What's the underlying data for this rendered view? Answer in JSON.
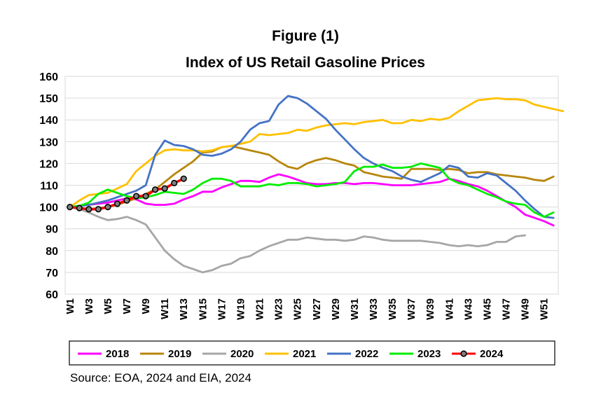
{
  "chart_data": {
    "type": "line",
    "title_line1": "Figure (1)",
    "title_line2": "Index of US Retail Gasoline Prices",
    "source": "Source: EOA, 2024 and EIA, 2024",
    "ylim": [
      60,
      160
    ],
    "yticks": [
      60,
      70,
      80,
      90,
      100,
      110,
      120,
      130,
      140,
      150,
      160
    ],
    "xtick_labels": [
      "W1",
      "W3",
      "W5",
      "W7",
      "W9",
      "W11",
      "W13",
      "W15",
      "W17",
      "W19",
      "W21",
      "W23",
      "W25",
      "W27",
      "W29",
      "W31",
      "W33",
      "W35",
      "W37",
      "W39",
      "W41",
      "W43",
      "W45",
      "W47",
      "W49",
      "W51"
    ],
    "grid": "horizontal",
    "legend_position": "bottom",
    "series": [
      {
        "name": "2018",
        "color": "#FF00FF",
        "markers": false,
        "values": [
          100,
          100.5,
          101,
          101.5,
          102,
          103,
          104,
          103.5,
          101.5,
          101,
          101,
          101.5,
          103.5,
          105,
          107,
          107,
          109,
          110.5,
          112,
          112,
          111.5,
          113.5,
          115,
          114,
          112.5,
          111,
          110.5,
          110.5,
          111,
          111,
          110.5,
          111,
          111,
          110.5,
          110,
          110,
          110,
          110.5,
          111,
          111.5,
          113,
          112,
          110.5,
          109.5,
          107.5,
          105,
          102.5,
          100,
          96.5,
          95,
          93.5,
          91.5
        ]
      },
      {
        "name": "2019",
        "color": "#B8860B",
        "markers": false,
        "values": [
          100,
          99.5,
          99,
          99.5,
          100,
          101,
          102.5,
          104,
          106,
          108,
          111.5,
          115,
          118,
          121,
          125,
          125.5,
          127.5,
          128,
          127,
          126,
          125,
          124,
          121,
          118.5,
          117.5,
          120,
          121.5,
          122.5,
          121.5,
          120,
          119,
          116,
          115,
          114,
          113.5,
          113,
          117.5,
          117.5,
          117.5,
          117,
          117.5,
          117,
          115.5,
          116,
          116,
          115,
          114.5,
          114,
          113.5,
          112.5,
          112,
          114
        ]
      },
      {
        "name": "2020",
        "color": "#A6A6A6",
        "markers": false,
        "values": [
          100,
          99,
          97.5,
          95.5,
          94,
          94.5,
          95.5,
          94,
          92,
          86,
          80,
          76,
          73,
          71.5,
          70,
          71,
          73,
          74,
          76.5,
          77.5,
          80,
          82,
          83.5,
          85,
          85,
          86,
          85.5,
          85,
          85,
          84.5,
          85,
          86.5,
          86,
          85,
          84.5,
          84.5,
          84.5,
          84.5,
          84,
          83.5,
          82.5,
          82,
          82.5,
          82,
          82.5,
          84,
          84,
          86.5,
          87
        ]
      },
      {
        "name": "2021",
        "color": "#FFC000",
        "markers": false,
        "values": [
          100,
          103,
          105.5,
          106,
          106.5,
          108.5,
          110.5,
          116.5,
          120,
          123.5,
          126,
          126.5,
          126,
          126,
          125.5,
          126,
          127.5,
          128,
          129,
          130,
          133.5,
          133,
          133.5,
          134,
          135.5,
          135,
          136.5,
          137.5,
          138,
          138.5,
          138,
          139,
          139.5,
          140,
          138.5,
          138.5,
          140,
          139.5,
          140.5,
          140,
          141,
          144,
          146.5,
          149,
          149.5,
          150,
          149.5,
          149.5,
          149,
          147,
          146,
          145,
          144
        ]
      },
      {
        "name": "2022",
        "color": "#4472C4",
        "markers": false,
        "values": [
          100,
          100.5,
          101,
          102,
          103,
          104.5,
          106,
          107.5,
          110,
          124,
          130.5,
          128.5,
          128,
          126.5,
          124,
          123.5,
          124.5,
          126.5,
          130,
          135.5,
          138.5,
          139.5,
          147,
          151,
          150,
          147.5,
          144,
          140.5,
          135.5,
          131,
          126.5,
          122.5,
          120,
          118,
          116.5,
          114,
          112.5,
          111.5,
          113.5,
          115.5,
          119,
          118,
          114,
          113.5,
          115.5,
          114.5,
          111,
          107.5,
          103,
          99,
          95.5,
          95
        ]
      },
      {
        "name": "2023",
        "color": "#00EE00",
        "markers": false,
        "values": [
          100,
          100.5,
          102,
          106,
          108,
          106.5,
          105,
          104,
          104.5,
          105.5,
          107,
          106.5,
          106,
          108,
          111,
          113,
          113,
          112,
          109.5,
          109.5,
          109.5,
          110.5,
          110,
          111,
          111,
          110.5,
          109.5,
          110,
          110.5,
          111.5,
          116.5,
          118.5,
          118.5,
          119.5,
          118,
          118,
          118.5,
          120,
          119,
          118,
          113,
          111,
          110,
          108,
          106,
          104.5,
          102.5,
          101.5,
          101,
          97.5,
          95.5,
          97.5
        ]
      },
      {
        "name": "2024",
        "color": "#FF0000",
        "markers": true,
        "values": [
          100,
          99.5,
          99,
          99,
          100,
          101.5,
          103,
          105,
          105,
          108,
          108.5,
          111,
          113
        ]
      }
    ]
  }
}
